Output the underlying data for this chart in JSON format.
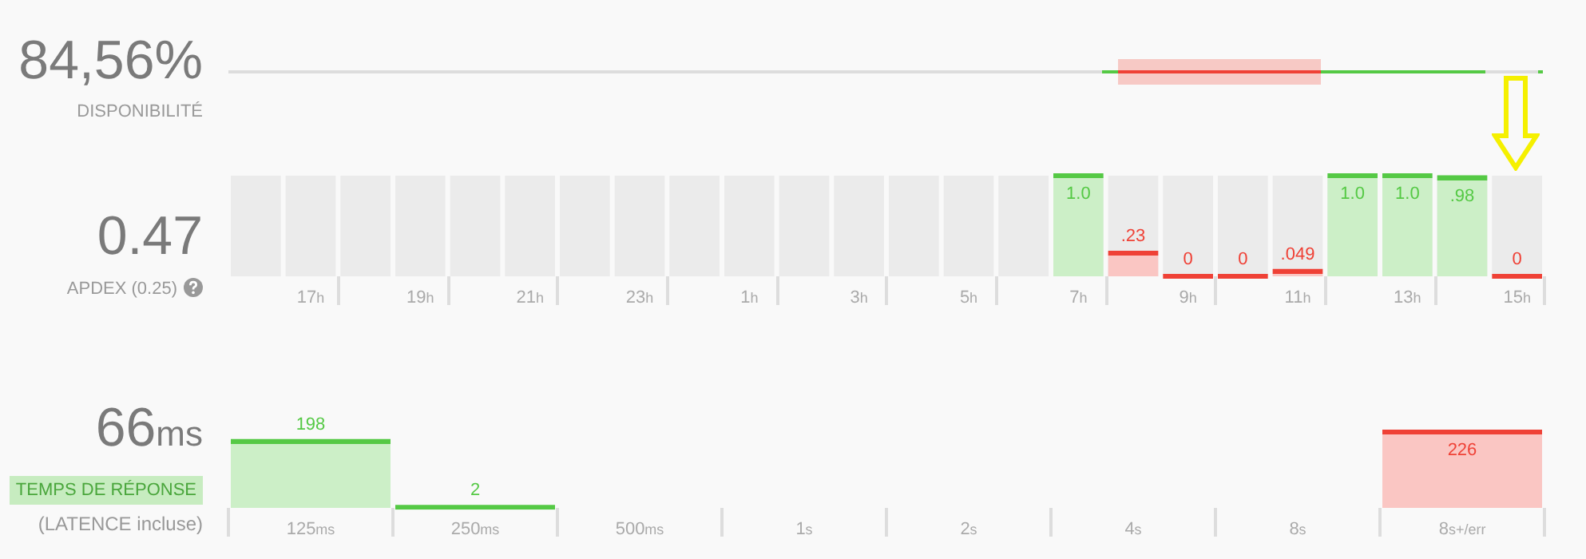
{
  "chart_data": [
    {
      "type": "other",
      "title": "84,56%",
      "subtitle": "DISPONIBILITÉ"
    },
    {
      "type": "bar",
      "title": "0.47",
      "subtitle": "APDEX (0.25)",
      "categories": [
        null,
        "17h",
        null,
        "19h",
        null,
        "21h",
        null,
        "23h",
        null,
        "1h",
        null,
        "3h",
        null,
        "5h",
        null,
        "7h",
        null,
        "9h",
        null,
        "11h",
        null,
        "13h",
        null,
        "15h"
      ],
      "values": [
        null,
        null,
        null,
        null,
        null,
        null,
        null,
        null,
        null,
        null,
        null,
        null,
        null,
        null,
        null,
        1.0,
        0.23,
        0,
        0,
        0.049,
        1.0,
        1.0,
        0.98,
        0
      ],
      "colors": [
        null,
        null,
        null,
        null,
        null,
        null,
        null,
        null,
        null,
        null,
        null,
        null,
        null,
        null,
        null,
        "#55c945",
        "#ef4136",
        "#ef4136",
        "#ef4136",
        "#ef4136",
        "#55c945",
        "#55c945",
        "#55c945",
        "#ef4136"
      ],
      "value_labels": [
        null,
        null,
        null,
        null,
        null,
        null,
        null,
        null,
        null,
        null,
        null,
        null,
        null,
        null,
        null,
        "1.0",
        ".23",
        "0",
        "0",
        ".049",
        "1.0",
        "1.0",
        ".98",
        "0"
      ],
      "ylim": [
        0,
        1
      ],
      "tick_labels": "x"
    },
    {
      "type": "bar",
      "title": "66ms",
      "subtitle": "TEMPS DE RÉPONSE",
      "annotations": [
        "(LATENCE incluse)"
      ],
      "categories": [
        "125ms",
        "250ms",
        "500ms",
        "1s",
        "2s",
        "4s",
        "8s",
        "8s+/err"
      ],
      "values": [
        198,
        2,
        null,
        null,
        null,
        null,
        null,
        226
      ],
      "colors": [
        "#55c945",
        "#55c945",
        null,
        null,
        null,
        null,
        null,
        "#ef4136"
      ],
      "data_labels": true,
      "tick_labels": "x"
    }
  ]
}
